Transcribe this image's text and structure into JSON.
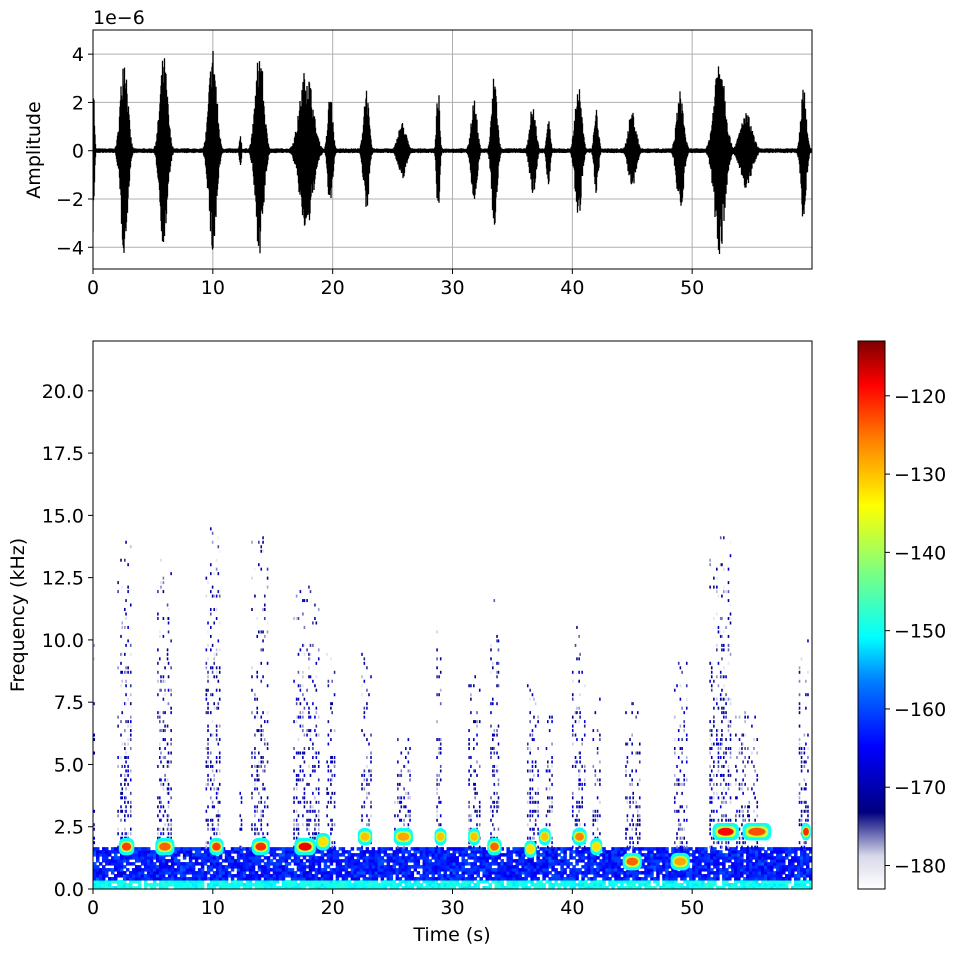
{
  "chart_data": [
    {
      "type": "line",
      "name": "waveform",
      "xlabel": "",
      "ylabel": "Amplitude",
      "offset_text": "1e−6",
      "xlim": [
        0,
        60
      ],
      "ylim": [
        -4.9,
        5.0
      ],
      "grid": true,
      "line_color": "#000000",
      "x_ticks": [
        0,
        10,
        20,
        30,
        40,
        50
      ],
      "x_tick_labels": [
        "0",
        "10",
        "20",
        "30",
        "40",
        "50"
      ],
      "y_ticks": [
        -4,
        -2,
        0,
        2,
        4
      ],
      "y_tick_labels": [
        "−4",
        "−2",
        "0",
        "2",
        "4"
      ],
      "noise_level": 0.1,
      "bursts": [
        {
          "t": 0.0,
          "dur": 0.4,
          "amp": 3.5
        },
        {
          "t": 2.6,
          "dur": 1.2,
          "amp": 4.3
        },
        {
          "t": 5.9,
          "dur": 1.3,
          "amp": 4.0
        },
        {
          "t": 10.0,
          "dur": 1.3,
          "amp": 4.4
        },
        {
          "t": 12.3,
          "dur": 0.3,
          "amp": 0.8
        },
        {
          "t": 13.9,
          "dur": 1.4,
          "amp": 4.3
        },
        {
          "t": 17.8,
          "dur": 2.2,
          "amp": 3.5
        },
        {
          "t": 19.8,
          "dur": 0.8,
          "amp": 2.5
        },
        {
          "t": 22.8,
          "dur": 0.9,
          "amp": 2.7
        },
        {
          "t": 25.8,
          "dur": 1.4,
          "amp": 1.2
        },
        {
          "t": 28.8,
          "dur": 0.5,
          "amp": 2.8
        },
        {
          "t": 31.8,
          "dur": 1.0,
          "amp": 2.2
        },
        {
          "t": 33.5,
          "dur": 0.9,
          "amp": 3.3
        },
        {
          "t": 36.7,
          "dur": 1.0,
          "amp": 2.0
        },
        {
          "t": 38.0,
          "dur": 0.6,
          "amp": 1.5
        },
        {
          "t": 40.5,
          "dur": 1.1,
          "amp": 2.9
        },
        {
          "t": 42.0,
          "dur": 0.7,
          "amp": 1.8
        },
        {
          "t": 45.0,
          "dur": 1.3,
          "amp": 1.7
        },
        {
          "t": 49.0,
          "dur": 1.2,
          "amp": 2.5
        },
        {
          "t": 52.3,
          "dur": 1.8,
          "amp": 4.3
        },
        {
          "t": 54.5,
          "dur": 2.0,
          "amp": 1.6
        },
        {
          "t": 59.3,
          "dur": 0.9,
          "amp": 3.0
        }
      ]
    },
    {
      "type": "heatmap",
      "name": "spectrogram",
      "xlabel": "Time (s)",
      "ylabel": "Frequency (kHz)",
      "xlim": [
        0,
        60
      ],
      "ylim": [
        0,
        22
      ],
      "x_ticks": [
        0,
        10,
        20,
        30,
        40,
        50
      ],
      "x_tick_labels": [
        "0",
        "10",
        "20",
        "30",
        "40",
        "50"
      ],
      "y_ticks": [
        0,
        2.5,
        5,
        7.5,
        10,
        12.5,
        15,
        17.5,
        20
      ],
      "y_tick_labels": [
        "0.0",
        "2.5",
        "5.0",
        "7.5",
        "10.0",
        "12.5",
        "15.0",
        "17.5",
        "20.0"
      ],
      "colormap": "jet (white low end)",
      "colorbar": {
        "range": [
          -183,
          -113
        ],
        "ticks": [
          -180,
          -170,
          -160,
          -150,
          -140,
          -130,
          -120
        ],
        "tick_labels": [
          "−180",
          "−170",
          "−160",
          "−150",
          "−140",
          "−130",
          "−120"
        ]
      },
      "peaks_khz": [
        {
          "t": 2.8,
          "f": 1.7,
          "dur": 1.3,
          "db": -122
        },
        {
          "t": 6.0,
          "f": 1.7,
          "dur": 1.6,
          "db": -124
        },
        {
          "t": 10.3,
          "f": 1.7,
          "dur": 1.2,
          "db": -122
        },
        {
          "t": 14.0,
          "f": 1.7,
          "dur": 1.5,
          "db": -121
        },
        {
          "t": 17.7,
          "f": 1.7,
          "dur": 1.8,
          "db": -118
        },
        {
          "t": 19.2,
          "f": 1.9,
          "dur": 1.2,
          "db": -132
        },
        {
          "t": 22.7,
          "f": 2.1,
          "dur": 1.2,
          "db": -130
        },
        {
          "t": 25.9,
          "f": 2.1,
          "dur": 1.6,
          "db": -128
        },
        {
          "t": 29.0,
          "f": 2.1,
          "dur": 1.0,
          "db": -130
        },
        {
          "t": 31.8,
          "f": 2.1,
          "dur": 1.0,
          "db": -130
        },
        {
          "t": 33.5,
          "f": 1.7,
          "dur": 1.2,
          "db": -124
        },
        {
          "t": 36.5,
          "f": 1.6,
          "dur": 1.0,
          "db": -132
        },
        {
          "t": 37.7,
          "f": 2.1,
          "dur": 1.0,
          "db": -130
        },
        {
          "t": 40.6,
          "f": 2.1,
          "dur": 1.2,
          "db": -126
        },
        {
          "t": 42.0,
          "f": 1.7,
          "dur": 1.0,
          "db": -132
        },
        {
          "t": 45.0,
          "f": 1.1,
          "dur": 1.6,
          "db": -124
        },
        {
          "t": 49.0,
          "f": 1.1,
          "dur": 1.6,
          "db": -128
        },
        {
          "t": 52.8,
          "f": 2.3,
          "dur": 2.2,
          "db": -119
        },
        {
          "t": 55.4,
          "f": 2.3,
          "dur": 2.4,
          "db": -123
        },
        {
          "t": 59.5,
          "f": 2.3,
          "dur": 0.8,
          "db": -121
        }
      ]
    }
  ]
}
